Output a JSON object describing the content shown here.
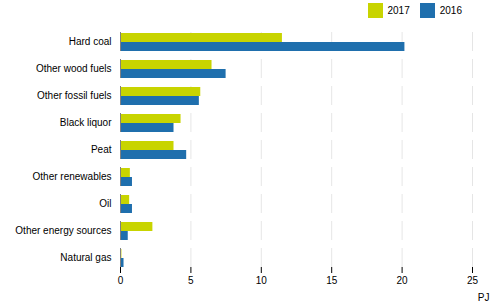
{
  "chart_data": {
    "type": "bar",
    "orientation": "horizontal",
    "categories": [
      "Hard coal",
      "Other wood fuels",
      "Other fossil fuels",
      "Black liquor",
      "Peat",
      "Other renewables",
      "Oil",
      "Other energy sources",
      "Natural gas"
    ],
    "series": [
      {
        "name": "2017",
        "color": "#c8d400",
        "values": [
          11.5,
          6.5,
          5.7,
          4.3,
          3.8,
          0.7,
          0.65,
          2.3,
          0.1
        ]
      },
      {
        "name": "2016",
        "color": "#1f6fad",
        "values": [
          20.2,
          7.5,
          5.6,
          3.8,
          4.7,
          0.85,
          0.85,
          0.55,
          0.25
        ]
      }
    ],
    "xlabel": "PJ",
    "xlim": [
      0,
      25
    ],
    "xticks": [
      0,
      5,
      10,
      15,
      20,
      25
    ],
    "grid": true,
    "legend": "upper right"
  }
}
